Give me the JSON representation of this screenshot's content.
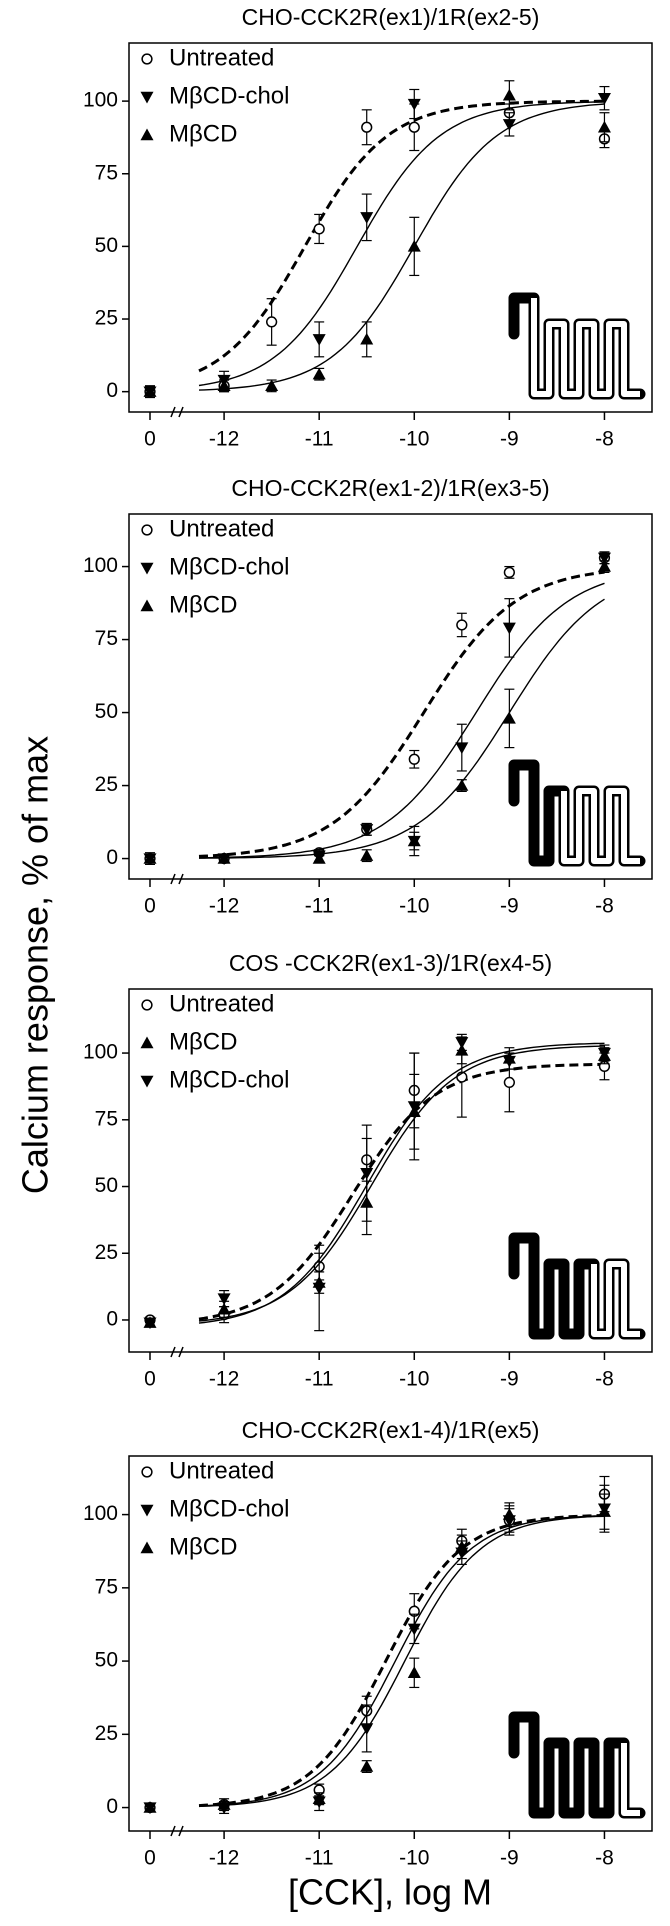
{
  "y_label": "Calcium response, % of max",
  "x_label": "[CCK], log M",
  "chart_data": [
    {
      "type": "dose-response",
      "title": "CHO-CCK2R(ex1)/1R(ex2-5)",
      "legend": "upper left",
      "x": [
        0,
        -12,
        -11.5,
        -11,
        -10.5,
        -10,
        -9,
        -8
      ],
      "xlim": [
        -13,
        -7.5
      ],
      "xticks": [
        0,
        -12,
        -11,
        -10,
        -9,
        -8
      ],
      "ylim": [
        -7,
        120
      ],
      "yticks": [
        0,
        25,
        50,
        75,
        100
      ],
      "series": [
        {
          "name": "Untreated",
          "marker": "circle",
          "dashed": true,
          "color": "#000000",
          "values": [
            0,
            2,
            24,
            56,
            91,
            91,
            96,
            87
          ],
          "errors": [
            2,
            2,
            8,
            5,
            6,
            8,
            3,
            3
          ],
          "fit": {
            "bottom": 0,
            "top": 100,
            "log_ec50": -11.15,
            "hill": 1
          }
        },
        {
          "name": "MβCD-chol",
          "marker": "triangle-down",
          "dashed": false,
          "color": "#000000",
          "values": [
            0,
            4,
            null,
            18,
            60,
            99,
            92,
            101
          ],
          "errors": [
            2,
            3,
            null,
            6,
            8,
            5,
            4,
            4
          ],
          "fit": {
            "bottom": 0,
            "top": 100,
            "log_ec50": -10.6,
            "hill": 1
          }
        },
        {
          "name": "MβCD",
          "marker": "triangle-up",
          "dashed": false,
          "color": "#000000",
          "values": [
            0,
            2,
            2,
            6,
            18,
            50,
            102,
            91
          ],
          "errors": [
            1,
            2,
            2,
            2,
            6,
            10,
            5,
            5
          ],
          "fit": {
            "bottom": 0,
            "top": 100,
            "log_ec50": -10.0,
            "hill": 1
          }
        }
      ]
    },
    {
      "type": "dose-response",
      "title": "CHO-CCK2R(ex1-2)/1R(ex3-5)",
      "legend": "upper left",
      "x": [
        0,
        -12,
        -11,
        -10.5,
        -10,
        -9.5,
        -9,
        -8
      ],
      "xlim": [
        -13,
        -7.5
      ],
      "xticks": [
        0,
        -12,
        -11,
        -10,
        -9,
        -8
      ],
      "ylim": [
        -7,
        118
      ],
      "yticks": [
        0,
        25,
        50,
        75,
        100
      ],
      "series": [
        {
          "name": "Untreated",
          "marker": "circle",
          "dashed": true,
          "color": "#000000",
          "values": [
            0,
            0,
            2,
            10,
            34,
            80,
            98,
            103
          ],
          "errors": [
            2,
            1,
            1,
            2,
            3,
            4,
            2,
            2
          ],
          "fit": {
            "bottom": 0,
            "top": 100,
            "log_ec50": -9.9,
            "hill": 0.9
          }
        },
        {
          "name": "MβCD-chol",
          "marker": "triangle-down",
          "dashed": false,
          "color": "#000000",
          "values": [
            0,
            0,
            1,
            10,
            6,
            38,
            79,
            103
          ],
          "errors": [
            1,
            1,
            2,
            2,
            3,
            8,
            10,
            2
          ],
          "fit": {
            "bottom": 0,
            "top": 100,
            "log_ec50": -9.35,
            "hill": 0.9
          }
        },
        {
          "name": "MβCD",
          "marker": "triangle-up",
          "dashed": false,
          "color": "#000000",
          "values": [
            0,
            0,
            0,
            1,
            6,
            25,
            48,
            100
          ],
          "errors": [
            1,
            1,
            1,
            2,
            5,
            2,
            10,
            2
          ],
          "fit": {
            "bottom": 0,
            "top": 100,
            "log_ec50": -9.0,
            "hill": 0.9
          }
        }
      ]
    },
    {
      "type": "dose-response",
      "title": "COS -CCK2R(ex1-3)/1R(ex4-5)",
      "legend": "upper left",
      "x": [
        0,
        -12,
        -11,
        -10.5,
        -10,
        -9.5,
        -9,
        -8
      ],
      "xlim": [
        -13,
        -7.5
      ],
      "xticks": [
        0,
        -12,
        -11,
        -10,
        -9,
        -8
      ],
      "ylim": [
        -12,
        124
      ],
      "yticks": [
        0,
        25,
        50,
        75,
        100
      ],
      "series": [
        {
          "name": "Untreated",
          "marker": "circle",
          "dashed": true,
          "color": "#000000",
          "values": [
            0,
            2,
            20,
            60,
            86,
            91,
            89,
            95
          ],
          "errors": [
            1,
            3,
            5,
            8,
            14,
            15,
            11,
            5
          ],
          "fit": {
            "bottom": -2,
            "top": 96,
            "log_ec50": -10.65,
            "hill": 1
          }
        },
        {
          "name": "MβCD",
          "marker": "triangle-up",
          "dashed": false,
          "color": "#000000",
          "values": [
            -1,
            4,
            14,
            44,
            78,
            101,
            98,
            99
          ],
          "errors": [
            1,
            3,
            4,
            12,
            14,
            5,
            4,
            3
          ],
          "fit": {
            "bottom": -3,
            "top": 104,
            "log_ec50": -10.5,
            "hill": 1
          }
        },
        {
          "name": "MβCD-chol",
          "marker": "triangle-down",
          "dashed": false,
          "color": "#000000",
          "values": [
            -1,
            8,
            12,
            55,
            80,
            104,
            97,
            100
          ],
          "errors": [
            1,
            3,
            16,
            18,
            20,
            3,
            3,
            3
          ],
          "fit": {
            "bottom": -2,
            "top": 103,
            "log_ec50": -10.45,
            "hill": 1
          }
        }
      ]
    },
    {
      "type": "dose-response",
      "title": "CHO-CCK2R(ex1-4)/1R(ex5)",
      "legend": "upper left",
      "x": [
        0,
        -12,
        -11,
        -10.5,
        -10,
        -9.5,
        -9,
        -8
      ],
      "xlim": [
        -13,
        -7.5
      ],
      "xticks": [
        0,
        -12,
        -11,
        -10,
        -9,
        -8
      ],
      "ylim": [
        -8,
        120
      ],
      "yticks": [
        0,
        25,
        50,
        75,
        100
      ],
      "series": [
        {
          "name": "Untreated",
          "marker": "circle",
          "dashed": true,
          "color": "#000000",
          "values": [
            0,
            1,
            6,
            33,
            67,
            91,
            98,
            107
          ],
          "errors": [
            1,
            2,
            2,
            5,
            6,
            4,
            5,
            6
          ],
          "fit": {
            "bottom": 0,
            "top": 100,
            "log_ec50": -10.3,
            "hill": 1.1
          }
        },
        {
          "name": "MβCD-chol",
          "marker": "triangle-down",
          "dashed": false,
          "color": "#000000",
          "values": [
            0,
            0,
            2,
            27,
            61,
            87,
            98,
            102
          ],
          "errors": [
            1,
            2,
            3,
            8,
            5,
            4,
            4,
            8
          ],
          "fit": {
            "bottom": 0,
            "top": 100,
            "log_ec50": -10.2,
            "hill": 1.1
          }
        },
        {
          "name": "MβCD",
          "marker": "triangle-up",
          "dashed": false,
          "color": "#000000",
          "values": [
            0,
            1,
            3,
            14,
            46,
            89,
            100,
            101
          ],
          "errors": [
            1,
            1,
            2,
            2,
            5,
            4,
            4,
            6
          ],
          "fit": {
            "bottom": 0,
            "top": 100,
            "log_ec50": -10.1,
            "hill": 1.1
          }
        }
      ]
    }
  ]
}
